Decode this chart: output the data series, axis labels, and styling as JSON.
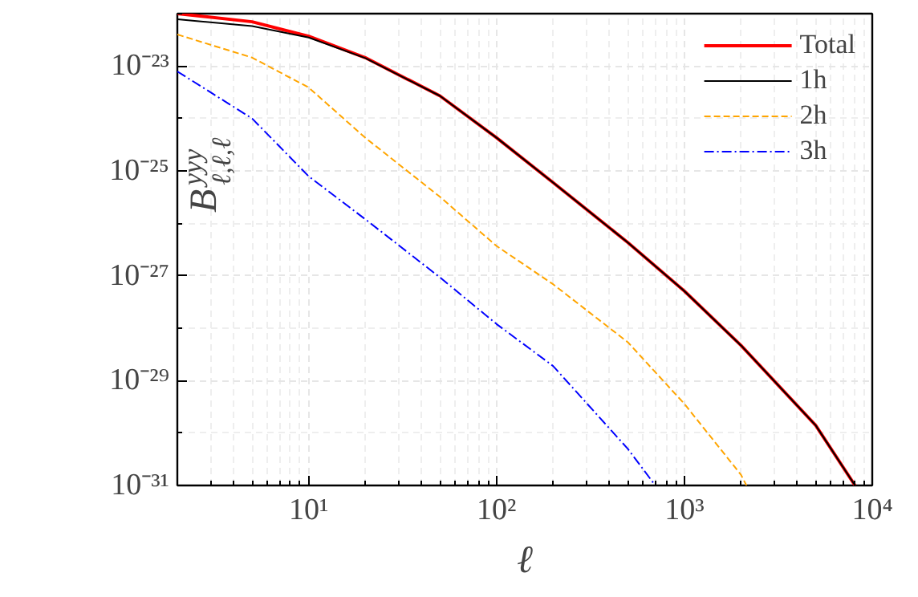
{
  "chart_data": {
    "type": "line",
    "xlabel": "ℓ",
    "ylabel": "B$^{yyy}$$_{ℓ,ℓ,ℓ}$",
    "log": "xy",
    "grid": true,
    "legend": "top right",
    "xlim": [
      2,
      10000
    ],
    "ylim": [
      1e-31,
      1e-22
    ],
    "xticks": [
      {
        "value": 10,
        "label": "10¹"
      },
      {
        "value": 100,
        "label": "10²"
      },
      {
        "value": 1000,
        "label": "10³"
      },
      {
        "value": 10000,
        "label": "10⁴"
      }
    ],
    "yticks": [
      {
        "value": 1e-31,
        "label": "10⁻³¹"
      },
      {
        "value": 1e-29,
        "label": "10⁻²⁹"
      },
      {
        "value": 1e-27,
        "label": "10⁻²⁷"
      },
      {
        "value": 1e-25,
        "label": "10⁻²⁵"
      },
      {
        "value": 1e-23,
        "label": "10⁻²³"
      }
    ],
    "series": [
      {
        "name": "Total",
        "color": "#ff0000",
        "line_style": "solid",
        "x": [
          2,
          5,
          10,
          20,
          50,
          100,
          200,
          500,
          1000,
          2000,
          5000,
          8100
        ],
        "values": [
          1e-22,
          7e-23,
          3.7e-23,
          1.45e-23,
          2.7e-24,
          4.3e-25,
          6e-26,
          4.3e-27,
          5.1e-28,
          4.7e-29,
          1.4e-30,
          1e-31
        ]
      },
      {
        "name": "1h",
        "color": "#000000",
        "line_style": "solid",
        "x": [
          2,
          5,
          10,
          20,
          50,
          100,
          200,
          500,
          1000,
          2000,
          5000,
          8100
        ],
        "values": [
          7.8e-23,
          5.8e-23,
          3.5e-23,
          1.42e-23,
          2.7e-24,
          4.3e-25,
          6e-26,
          4.3e-27,
          5.1e-28,
          4.7e-29,
          1.4e-30,
          1e-31
        ]
      },
      {
        "name": "2h",
        "color": "#ffa500",
        "line_style": "dashed",
        "x": [
          2,
          5,
          10,
          20,
          50,
          100,
          200,
          500,
          1000,
          2000,
          2140
        ],
        "values": [
          4e-23,
          1.45e-23,
          3.9e-24,
          4.3e-25,
          3.2e-26,
          3.7e-27,
          6.9e-28,
          5.4e-29,
          3.6e-30,
          1.6e-31,
          1e-31
        ]
      },
      {
        "name": "3h",
        "color": "#0000ff",
        "line_style": "dashdot",
        "x": [
          2,
          5,
          10,
          20,
          50,
          100,
          200,
          500,
          700
        ],
        "values": [
          7.9e-24,
          1e-24,
          7.9e-26,
          1.2e-26,
          9.3e-28,
          1.2e-28,
          1.9e-29,
          5e-31,
          1e-31
        ]
      }
    ]
  }
}
